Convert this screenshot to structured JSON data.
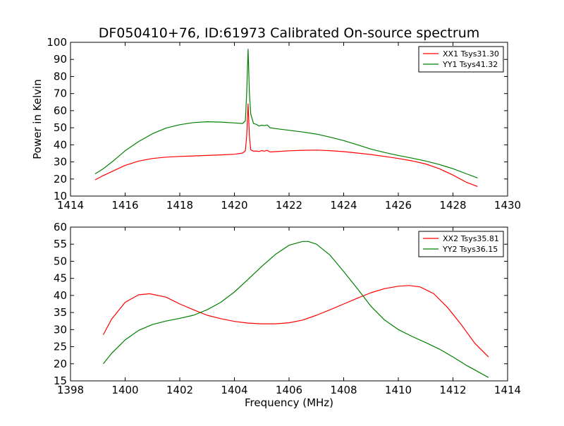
{
  "figure": {
    "title": "DF050410+76, ID:61973 Calibrated On-source spectrum"
  },
  "chart_data": [
    {
      "type": "line",
      "title": "DF050410+76, ID:61973 Calibrated On-source spectrum",
      "xlabel": "",
      "ylabel": "Power in Kelvin",
      "xlim": [
        1414,
        1430
      ],
      "ylim": [
        10,
        100
      ],
      "xticks": [
        1414,
        1416,
        1418,
        1420,
        1422,
        1424,
        1426,
        1428,
        1430
      ],
      "yticks": [
        10,
        20,
        30,
        40,
        50,
        60,
        70,
        80,
        90,
        100
      ],
      "grid": false,
      "legend_position": "top-right",
      "series": [
        {
          "name": "XX1 Tsys31.30",
          "color": "#ff0000",
          "x": [
            1414.9,
            1415.2,
            1415.6,
            1416.0,
            1416.5,
            1417.0,
            1417.5,
            1418.0,
            1418.5,
            1419.0,
            1419.5,
            1420.0,
            1420.3,
            1420.4,
            1420.45,
            1420.5,
            1420.55,
            1420.6,
            1420.7,
            1420.8,
            1420.9,
            1421.0,
            1421.1,
            1421.2,
            1421.3,
            1421.5,
            1422.0,
            1422.5,
            1423.0,
            1423.5,
            1424.0,
            1424.5,
            1425.0,
            1425.5,
            1426.0,
            1426.5,
            1427.0,
            1427.5,
            1428.0,
            1428.5,
            1428.9
          ],
          "y": [
            19.5,
            22.0,
            25.0,
            28.0,
            30.5,
            32.0,
            32.8,
            33.2,
            33.5,
            33.8,
            34.1,
            34.5,
            35.2,
            36.5,
            45.0,
            64.0,
            45.0,
            37.0,
            36.3,
            36.4,
            36.1,
            36.6,
            36.3,
            36.8,
            35.8,
            36.0,
            36.5,
            36.8,
            36.9,
            36.6,
            36.0,
            35.2,
            34.3,
            33.2,
            32.0,
            30.6,
            28.8,
            26.0,
            22.3,
            18.0,
            15.6
          ]
        },
        {
          "name": "YY1 Tsys41.32",
          "color": "#008000",
          "x": [
            1414.9,
            1415.2,
            1415.6,
            1416.0,
            1416.5,
            1417.0,
            1417.5,
            1418.0,
            1418.5,
            1419.0,
            1419.5,
            1420.0,
            1420.3,
            1420.4,
            1420.45,
            1420.5,
            1420.55,
            1420.6,
            1420.7,
            1420.8,
            1420.9,
            1421.0,
            1421.1,
            1421.2,
            1421.3,
            1421.5,
            1422.0,
            1422.5,
            1423.0,
            1423.5,
            1424.0,
            1424.5,
            1425.0,
            1425.5,
            1426.0,
            1426.5,
            1427.0,
            1427.5,
            1428.0,
            1428.5,
            1428.9
          ],
          "y": [
            23.0,
            26.0,
            31.0,
            36.5,
            42.0,
            46.5,
            49.8,
            51.8,
            53.0,
            53.5,
            53.3,
            52.8,
            52.5,
            54.0,
            70.0,
            96.0,
            70.0,
            58.0,
            52.5,
            52.0,
            51.0,
            51.5,
            51.2,
            51.6,
            50.0,
            49.5,
            48.5,
            47.5,
            46.3,
            44.5,
            42.5,
            40.0,
            37.5,
            35.5,
            33.8,
            32.2,
            30.5,
            28.5,
            26.0,
            23.0,
            20.6
          ]
        }
      ]
    },
    {
      "type": "line",
      "title": "",
      "xlabel": "Frequency (MHz)",
      "ylabel": "",
      "xlim": [
        1398,
        1414
      ],
      "ylim": [
        15,
        60
      ],
      "xticks": [
        1398,
        1400,
        1402,
        1404,
        1406,
        1408,
        1410,
        1412,
        1414
      ],
      "yticks": [
        15,
        20,
        25,
        30,
        35,
        40,
        45,
        50,
        55,
        60
      ],
      "grid": false,
      "legend_position": "top-right",
      "series": [
        {
          "name": "XX2 Tsys35.81",
          "color": "#ff0000",
          "x": [
            1399.2,
            1399.5,
            1400.0,
            1400.5,
            1400.9,
            1401.5,
            1402.0,
            1402.5,
            1403.0,
            1403.5,
            1404.0,
            1404.5,
            1405.0,
            1405.5,
            1406.0,
            1406.5,
            1407.0,
            1407.5,
            1408.0,
            1408.5,
            1409.0,
            1409.5,
            1410.0,
            1410.4,
            1410.8,
            1411.3,
            1411.8,
            1412.3,
            1412.8,
            1413.3
          ],
          "y": [
            28.5,
            33.0,
            38.0,
            40.2,
            40.5,
            39.5,
            37.5,
            35.8,
            34.2,
            33.2,
            32.4,
            31.9,
            31.7,
            31.7,
            32.0,
            32.8,
            34.2,
            35.8,
            37.5,
            39.2,
            40.8,
            42.0,
            42.7,
            42.9,
            42.5,
            40.5,
            36.5,
            31.5,
            26.0,
            22.0
          ]
        },
        {
          "name": "YY2 Tsys36.15",
          "color": "#008000",
          "x": [
            1399.2,
            1399.5,
            1400.0,
            1400.5,
            1401.0,
            1401.5,
            1402.0,
            1402.5,
            1403.0,
            1403.5,
            1404.0,
            1404.5,
            1405.0,
            1405.5,
            1406.0,
            1406.5,
            1406.7,
            1407.0,
            1407.5,
            1408.0,
            1408.5,
            1409.0,
            1409.5,
            1410.0,
            1410.5,
            1411.0,
            1411.5,
            1412.0,
            1412.5,
            1413.3
          ],
          "y": [
            20.0,
            23.0,
            27.0,
            29.8,
            31.5,
            32.5,
            33.3,
            34.2,
            35.8,
            38.0,
            41.0,
            44.7,
            48.5,
            52.0,
            54.7,
            55.8,
            55.8,
            55.0,
            51.8,
            47.0,
            42.0,
            36.8,
            32.8,
            30.0,
            28.0,
            26.2,
            24.3,
            22.0,
            19.5,
            16.0
          ]
        }
      ]
    }
  ]
}
